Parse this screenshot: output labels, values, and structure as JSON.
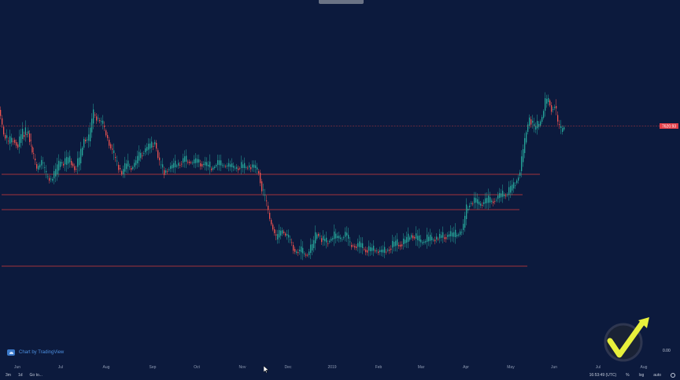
{
  "chart": {
    "attribution": "Chart by TradingView",
    "current_price_label": "7620.93",
    "right_axis_value": "0.00"
  },
  "time_axis": {
    "labels": [
      "Jun",
      "Jul",
      "Aug",
      "Sep",
      "Oct",
      "Nov",
      "Dec",
      "2019",
      "Feb",
      "Mar",
      "Apr",
      "May",
      "Jun",
      "Jul",
      "Aug"
    ]
  },
  "toolbar": {
    "range_3m": "3m",
    "range_1d": "1d",
    "goto": "Go to...",
    "clock": "16:53:49 (UTC)",
    "percent": "%",
    "log": "log",
    "auto": "auto"
  },
  "colors": {
    "background": "#0c1a3d",
    "up_candle": "#26a69a",
    "down_candle": "#ef5350",
    "level_line": "#a2323a",
    "price_tag": "#e3404a",
    "watermark": "#e8f03c"
  },
  "icons": {
    "attribution_logo": "tradingview-cloud-icon",
    "settings": "gear-icon",
    "watermark": "checkmark-arrow-logo",
    "cursor": "mouse-pointer-icon"
  }
}
